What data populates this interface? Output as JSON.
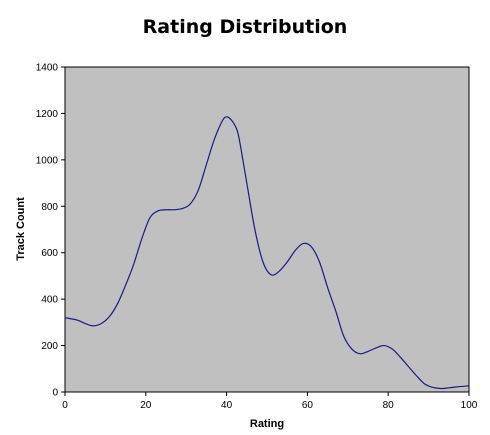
{
  "chart_data": {
    "type": "line",
    "title": "Rating Distribution",
    "xlabel": "Rating",
    "ylabel": "Track Count",
    "xlim": [
      0,
      100
    ],
    "ylim": [
      0,
      1400
    ],
    "xticks": [
      0,
      20,
      40,
      60,
      80,
      100
    ],
    "yticks": [
      0,
      200,
      400,
      600,
      800,
      1000,
      1200,
      1400
    ],
    "plot_background": "#c0c0c0",
    "line_color": "#1a1a8c",
    "grid": false,
    "legend": "none",
    "series": [
      {
        "x": [
          0,
          3,
          5,
          7,
          9,
          11,
          13,
          15,
          17,
          19,
          21,
          23,
          25,
          27,
          29,
          31,
          33,
          35,
          37,
          39,
          40,
          41,
          42,
          43,
          45,
          47,
          49,
          51,
          53,
          55,
          57,
          59,
          61,
          63,
          65,
          67,
          69,
          71,
          73,
          75,
          77,
          79,
          81,
          83,
          85,
          87,
          89,
          91,
          93,
          95,
          97,
          99,
          100
        ],
        "y": [
          320,
          310,
          295,
          285,
          295,
          325,
          380,
          460,
          550,
          660,
          750,
          780,
          785,
          785,
          790,
          810,
          870,
          980,
          1090,
          1170,
          1185,
          1175,
          1150,
          1100,
          900,
          700,
          560,
          505,
          520,
          560,
          610,
          640,
          625,
          560,
          450,
          350,
          240,
          185,
          165,
          175,
          190,
          200,
          185,
          150,
          110,
          70,
          35,
          20,
          15,
          18,
          22,
          25,
          27
        ]
      }
    ]
  }
}
